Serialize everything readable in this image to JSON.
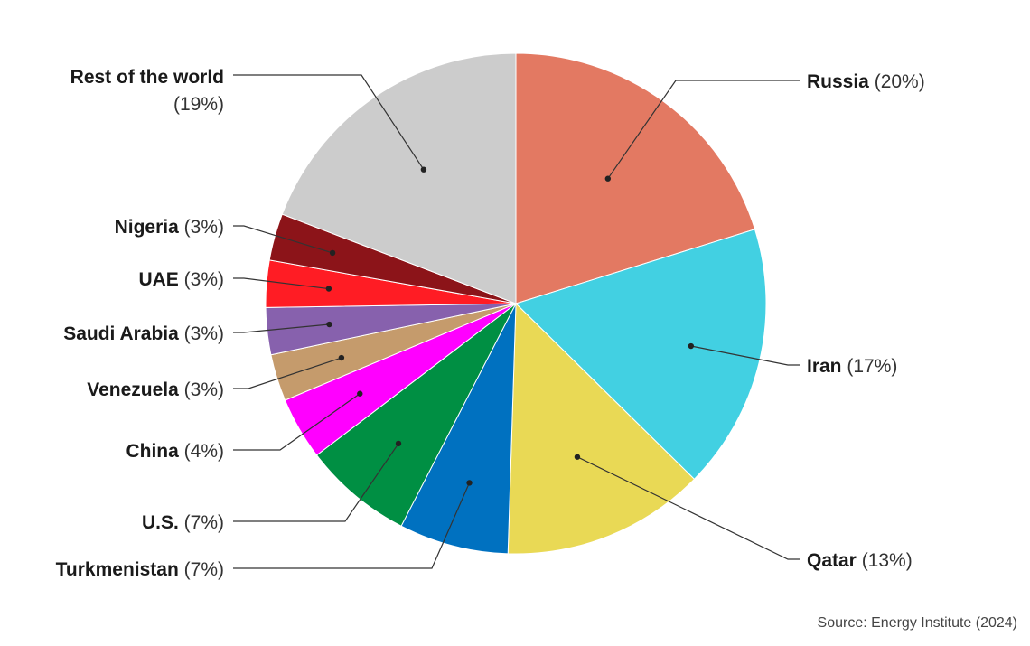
{
  "chart_data": {
    "type": "pie",
    "title": "",
    "slices": [
      {
        "label": "Russia",
        "pct_text": "(20%)",
        "value": 20,
        "color": "#e37962"
      },
      {
        "label": "Iran",
        "pct_text": "(17%)",
        "value": 17,
        "color": "#42d0e2"
      },
      {
        "label": "Qatar",
        "pct_text": "(13%)",
        "value": 13,
        "color": "#e9d955"
      },
      {
        "label": "Turkmenistan",
        "pct_text": "(7%)",
        "value": 7,
        "color": "#0071c0"
      },
      {
        "label": "U.S.",
        "pct_text": "(7%)",
        "value": 7,
        "color": "#008f43"
      },
      {
        "label": "China",
        "pct_text": "(4%)",
        "value": 4,
        "color": "#ff00ff"
      },
      {
        "label": "Venezuela",
        "pct_text": "(3%)",
        "value": 3,
        "color": "#c59b6c"
      },
      {
        "label": "Saudi Arabia",
        "pct_text": "(3%)",
        "value": 3,
        "color": "#8761ad"
      },
      {
        "label": "UAE",
        "pct_text": "(3%)",
        "value": 3,
        "color": "#ff1c24"
      },
      {
        "label": "Nigeria",
        "pct_text": "(3%)",
        "value": 3,
        "color": "#8c1419"
      },
      {
        "label": "Rest of the world",
        "pct_text": "(19%)",
        "value": 19,
        "color": "#cccccc"
      }
    ]
  },
  "source": "Source: Energy Institute (2024)"
}
